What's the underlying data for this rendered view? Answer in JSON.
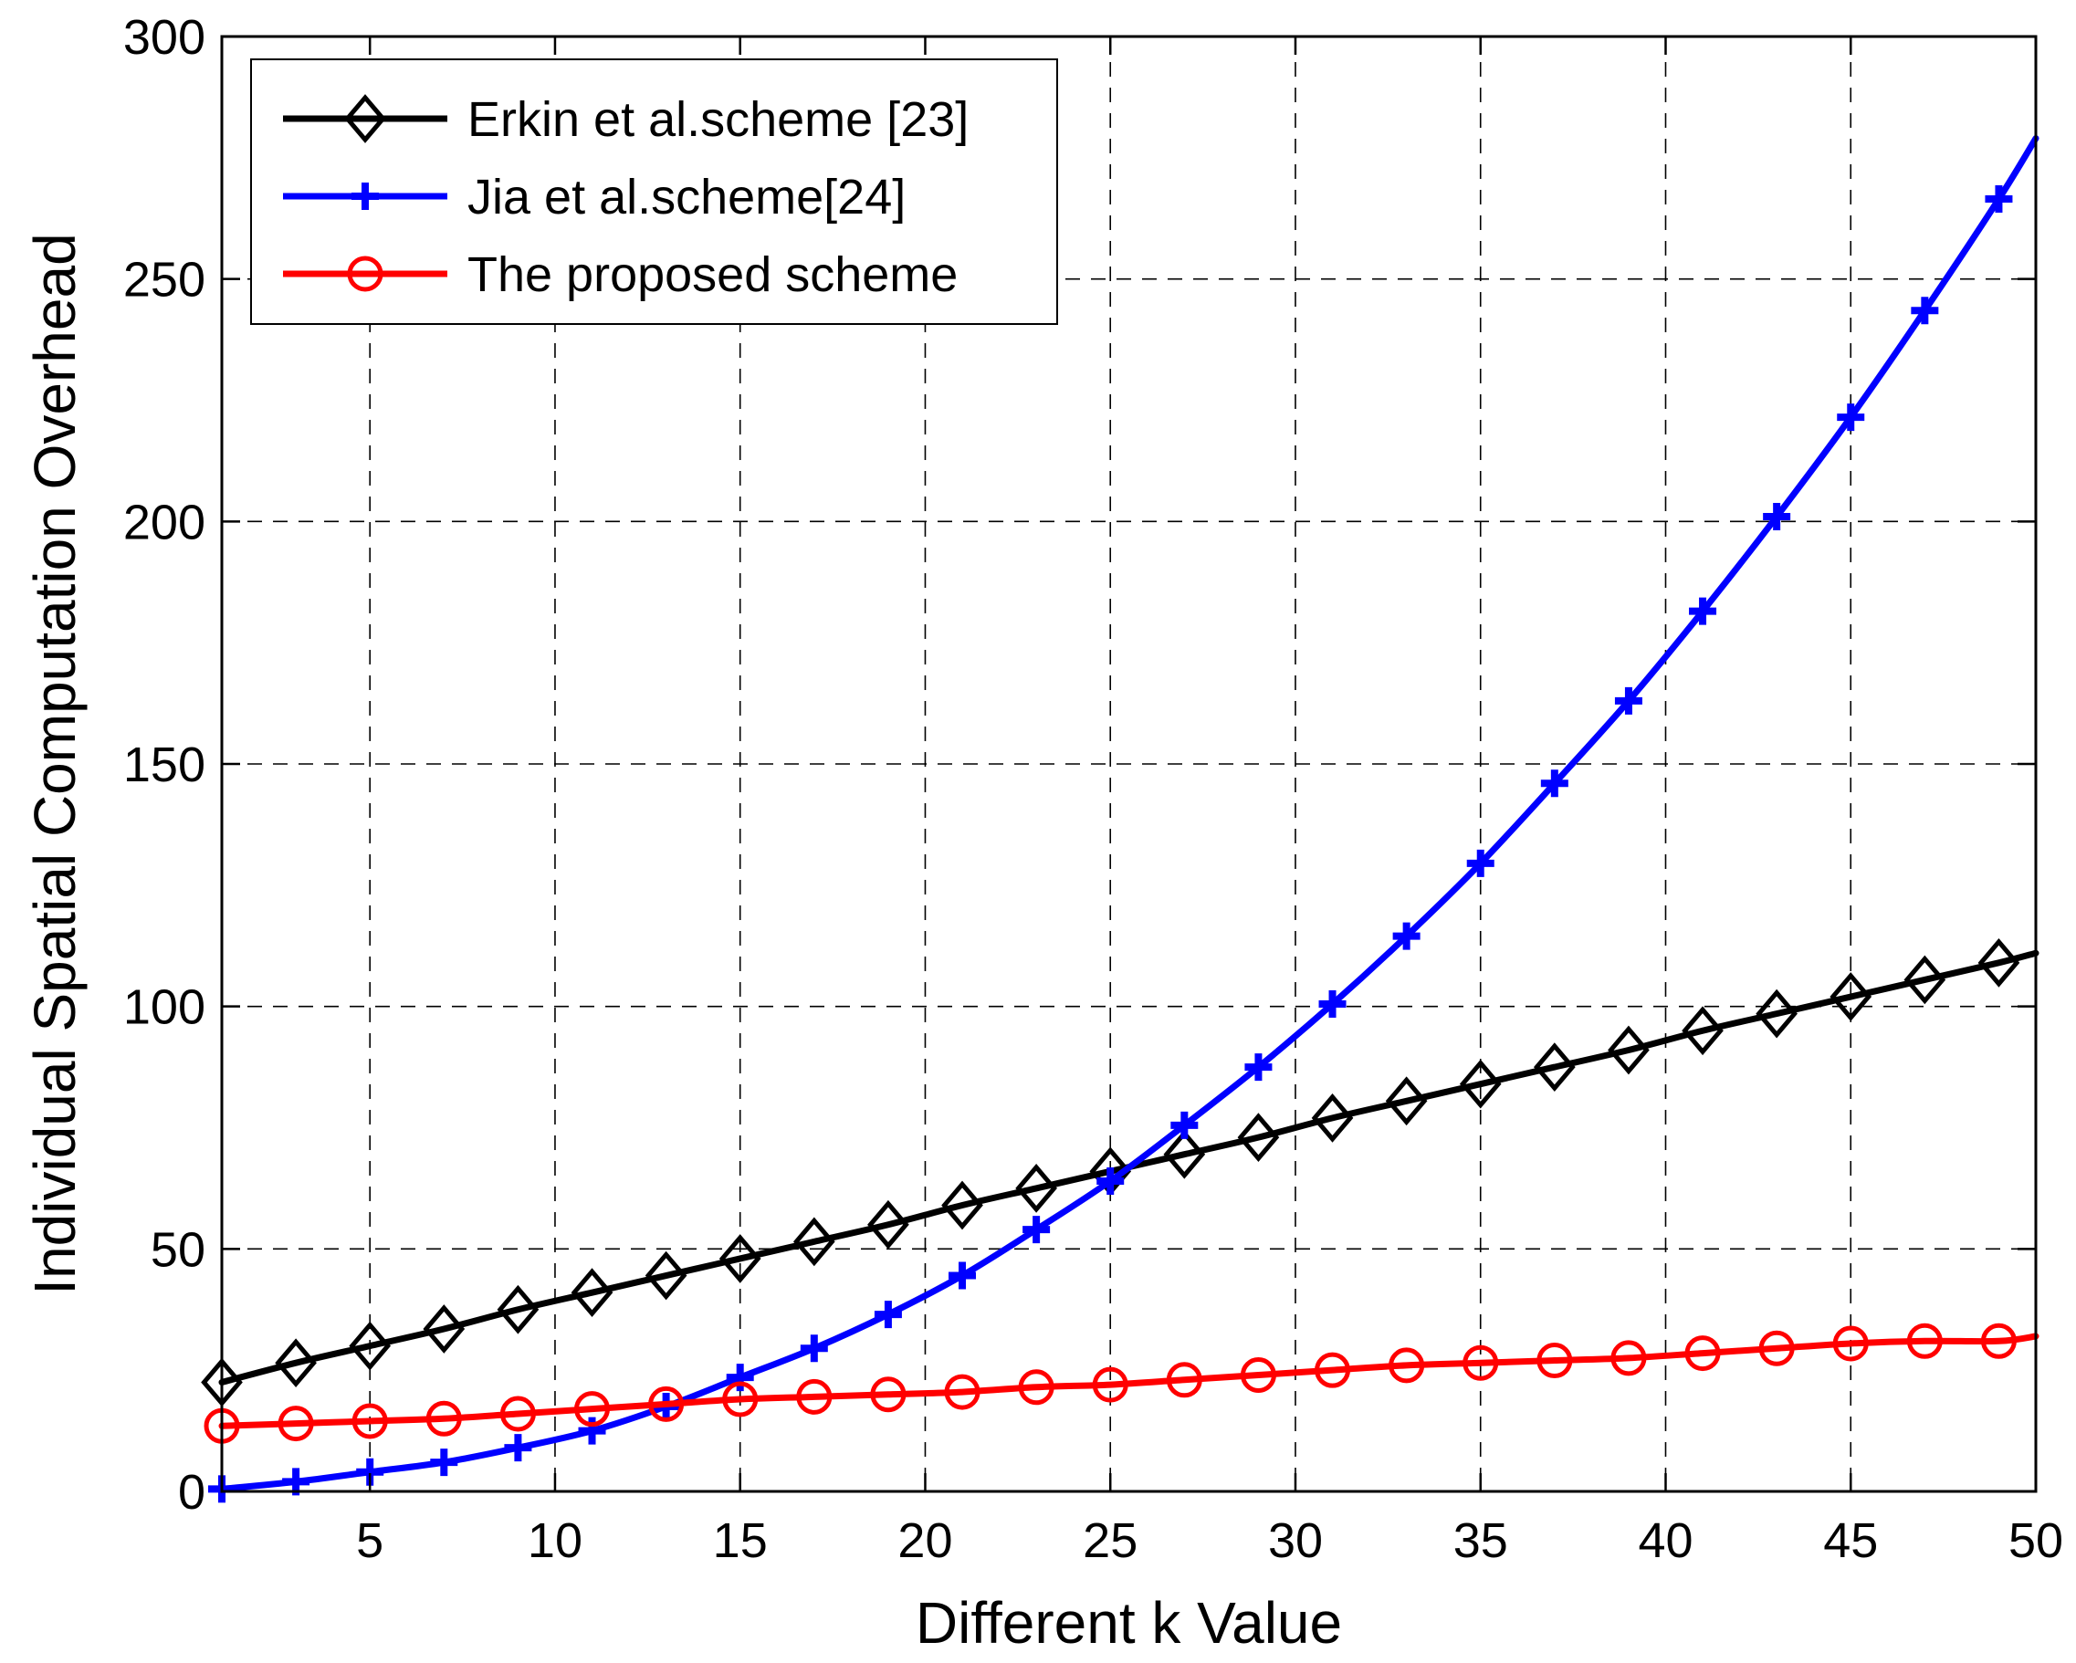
{
  "chart_data": {
    "type": "line",
    "title": "",
    "xlabel": "Different k Value",
    "ylabel": "Individual Spatial Computation Overhead",
    "xlim": [
      1,
      50
    ],
    "ylim": [
      0,
      300
    ],
    "xticks": [
      5,
      10,
      15,
      20,
      25,
      30,
      35,
      40,
      45,
      50
    ],
    "xtick_labels": [
      "5",
      "10",
      "15",
      "20",
      "25",
      "30",
      "35",
      "40",
      "45",
      "50"
    ],
    "yticks": [
      0,
      50,
      100,
      150,
      200,
      250,
      300
    ],
    "ytick_labels": [
      "0",
      "50",
      "100",
      "150",
      "200",
      "250",
      "300"
    ],
    "grid": true,
    "legend_position": "top-left",
    "x": [
      1,
      3,
      5,
      7,
      9,
      11,
      13,
      15,
      17,
      19,
      21,
      23,
      25,
      27,
      29,
      31,
      33,
      35,
      37,
      39,
      41,
      43,
      45,
      47,
      49
    ],
    "series": [
      {
        "name": "Erkin et al.scheme [23]",
        "color": "#000000",
        "marker": "diamond",
        "values": [
          22.5,
          26.5,
          30,
          33.5,
          37.5,
          41,
          44.5,
          48,
          51.5,
          55,
          59,
          62.5,
          66,
          69.5,
          73,
          77,
          80.5,
          84,
          87.5,
          91,
          95,
          98.5,
          102,
          105.5,
          109
        ],
        "end_value": 111
      },
      {
        "name": "Jia et al.scheme[24]",
        "color": "#0000ff",
        "marker": "plus",
        "values": [
          0.5,
          2,
          4,
          6,
          9,
          12.5,
          17.5,
          23.5,
          29.5,
          36.5,
          44.5,
          54,
          64,
          75.5,
          87.5,
          100.5,
          114.5,
          129.5,
          146,
          163,
          181.5,
          201,
          221.5,
          243.5,
          266.5
        ],
        "end_value": 279
      },
      {
        "name": "The proposed scheme",
        "color": "#ff0000",
        "marker": "circle",
        "values": [
          13.5,
          14,
          14.5,
          15,
          16,
          17,
          18,
          19,
          19.5,
          20,
          20.5,
          21.5,
          22,
          23,
          24,
          25,
          26,
          26.5,
          27,
          27.5,
          28.5,
          29.5,
          30.5,
          31,
          31
        ],
        "end_value": 32
      }
    ]
  }
}
